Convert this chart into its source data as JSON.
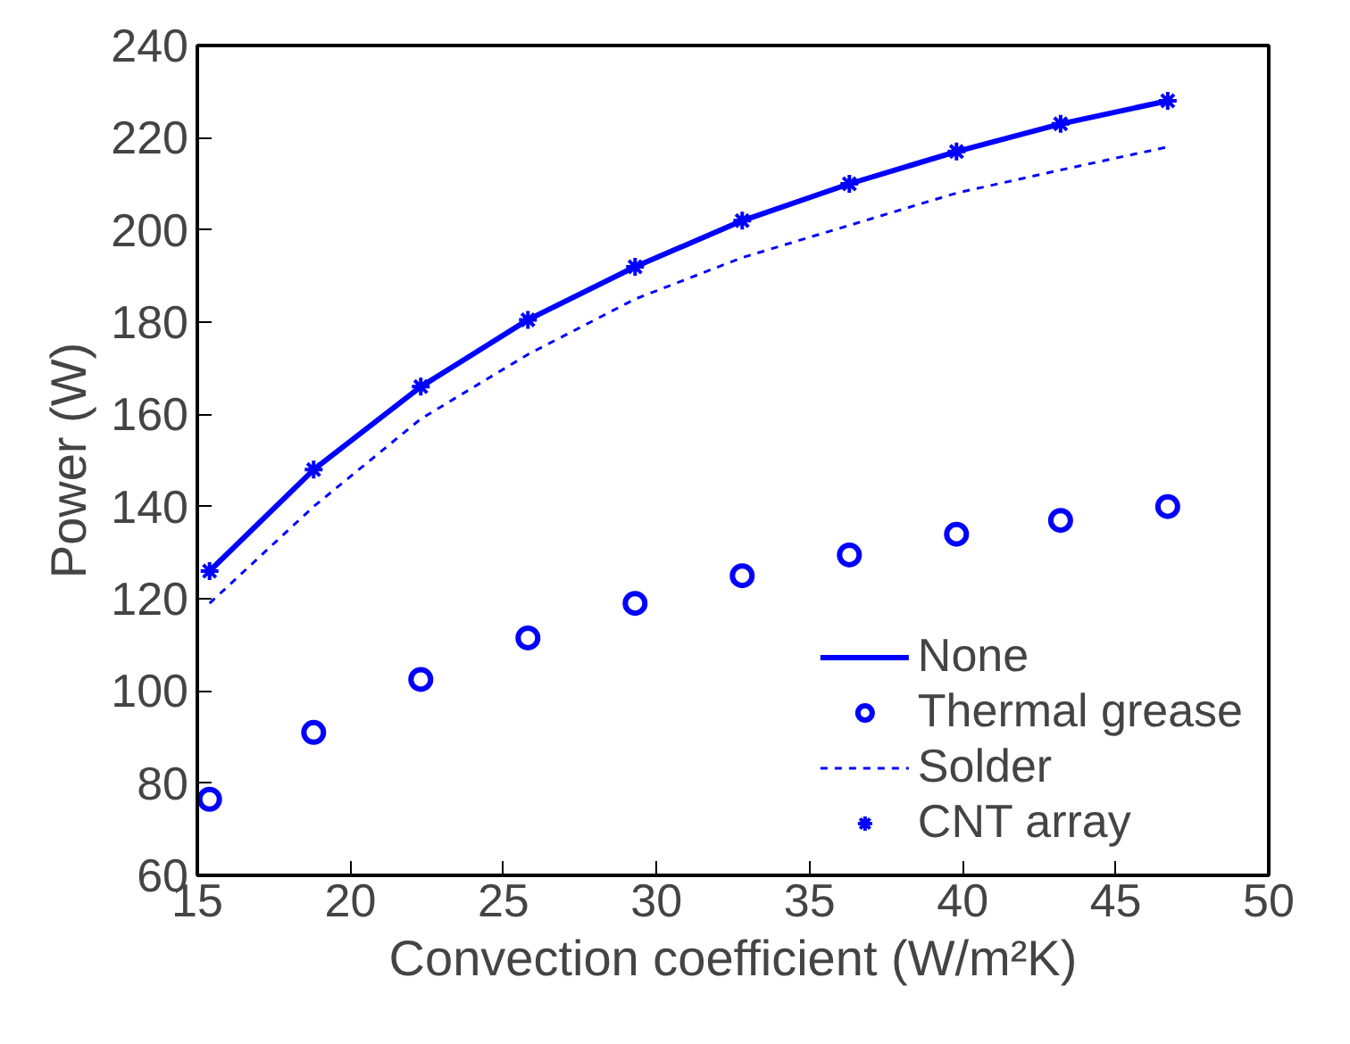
{
  "chart_data": {
    "type": "line",
    "xlabel": "Convection coefficient (W/m²K)",
    "ylabel": "Power (W)",
    "x": [
      15.4,
      18.8,
      22.3,
      25.8,
      29.3,
      32.8,
      36.3,
      39.8,
      43.2,
      46.7
    ],
    "series": [
      {
        "name": "None",
        "color": "#0000ff",
        "line_style": "solid",
        "marker": "none",
        "values": [
          126,
          148,
          166,
          180.5,
          192,
          202,
          210,
          217,
          223,
          228
        ]
      },
      {
        "name": "Thermal grease",
        "type": "scatter",
        "color": "#0000ff",
        "marker": "circle",
        "values": [
          76.5,
          91,
          102.5,
          111.5,
          119,
          125,
          129.5,
          134,
          137,
          140
        ]
      },
      {
        "name": "Solder",
        "color": "#0000ff",
        "line_style": "dashed",
        "marker": "none",
        "values": [
          119,
          140,
          159,
          173,
          185,
          194,
          201,
          208,
          213,
          218
        ]
      },
      {
        "name": "CNT array",
        "type": "scatter",
        "color": "#0000ff",
        "marker": "cross",
        "values": [
          126,
          148,
          166,
          180.5,
          192,
          202,
          210,
          217,
          223,
          228
        ]
      }
    ],
    "xlim": [
      15,
      50
    ],
    "ylim": [
      60,
      240
    ],
    "xticks": [
      15,
      20,
      25,
      30,
      35,
      40,
      45,
      50
    ],
    "yticks": [
      60,
      80,
      100,
      120,
      140,
      160,
      180,
      200,
      220,
      240
    ],
    "grid": false,
    "legend": "bottom right"
  }
}
